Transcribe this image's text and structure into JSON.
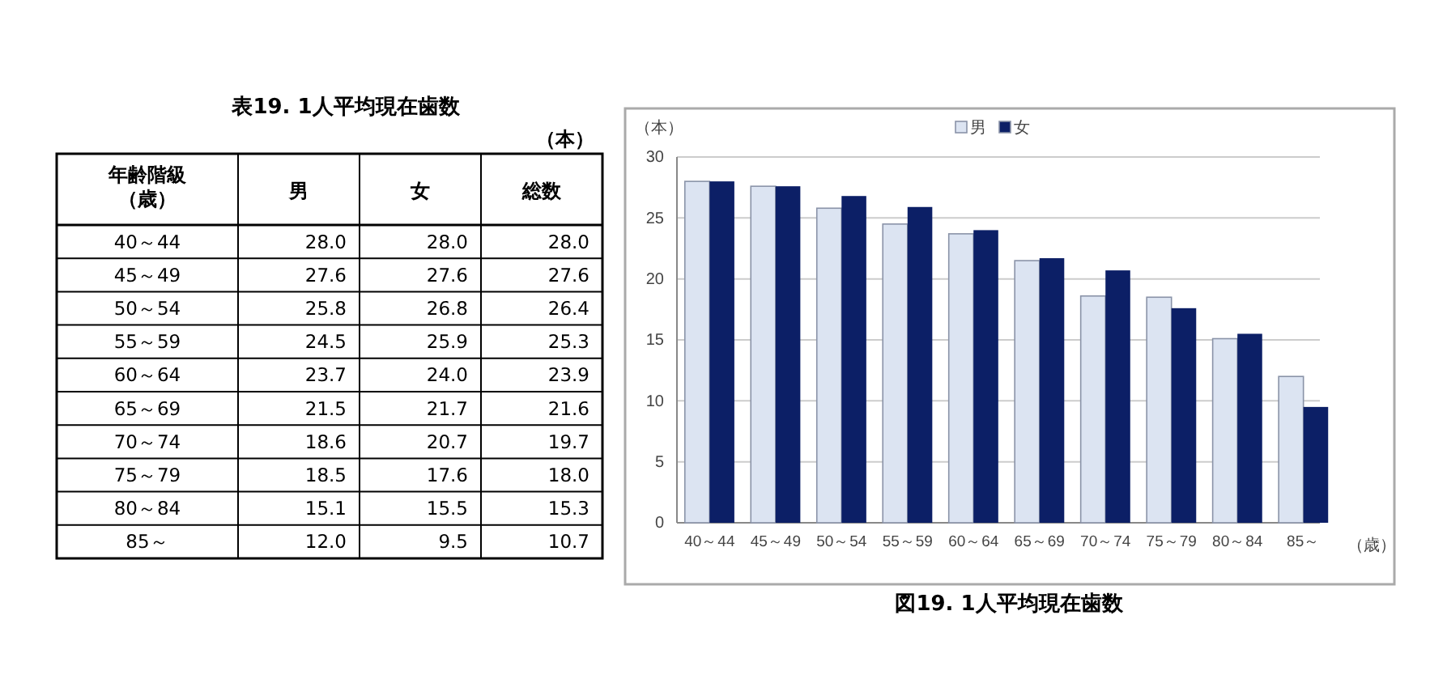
{
  "chart_data": [
    {
      "type": "heatmap",
      "title": "表19. 1人平均現在歯数",
      "annotations": [
        "（本）"
      ],
      "ylabel": "年齢階級（歳）",
      "categories": [
        "男",
        "女",
        "総数"
      ],
      "y_categories": [
        "40～44",
        "45～49",
        "50～54",
        "55～59",
        "60～64",
        "65～69",
        "70～74",
        "75～79",
        "80～84",
        "85～"
      ],
      "cells": [
        [
          28.0,
          28.0,
          28.0
        ],
        [
          27.6,
          27.6,
          27.6
        ],
        [
          25.8,
          26.8,
          26.4
        ],
        [
          24.5,
          25.9,
          25.3
        ],
        [
          23.7,
          24.0,
          23.9
        ],
        [
          21.5,
          21.7,
          21.6
        ],
        [
          18.6,
          20.7,
          19.7
        ],
        [
          18.5,
          17.6,
          18.0
        ],
        [
          15.1,
          15.5,
          15.3
        ],
        [
          12.0,
          9.5,
          10.7
        ]
      ],
      "cell_labels": [
        [
          "28.0",
          "28.0",
          "28.0"
        ],
        [
          "27.6",
          "27.6",
          "27.6"
        ],
        [
          "25.8",
          "26.8",
          "26.4"
        ],
        [
          "24.5",
          "25.9",
          "25.3"
        ],
        [
          "23.7",
          "24.0",
          "23.9"
        ],
        [
          "21.5",
          "21.7",
          "21.6"
        ],
        [
          "18.6",
          "20.7",
          "19.7"
        ],
        [
          "18.5",
          "17.6",
          "18.0"
        ],
        [
          "15.1",
          "15.5",
          "15.3"
        ],
        [
          "12.0",
          "9.5",
          "10.7"
        ]
      ]
    },
    {
      "type": "bar",
      "title": "図19. 1人平均現在歯数",
      "ylabel": "（本）",
      "xlabel": "（歳）",
      "categories": [
        "40～44",
        "45～49",
        "50～54",
        "55～59",
        "60～64",
        "65～69",
        "70～74",
        "75～79",
        "80～84",
        "85～"
      ],
      "series": [
        {
          "name": "男",
          "color": "#dce4f2",
          "values": [
            28.0,
            27.6,
            25.8,
            24.5,
            23.7,
            21.5,
            18.6,
            18.5,
            15.1,
            12.0
          ]
        },
        {
          "name": "女",
          "color": "#0c1f66",
          "values": [
            28.0,
            27.6,
            26.8,
            25.9,
            24.0,
            21.7,
            20.7,
            17.6,
            15.5,
            9.5
          ]
        }
      ],
      "ylim": [
        0,
        30
      ],
      "yticks": [
        0,
        5,
        10,
        15,
        20,
        25,
        30
      ],
      "grid": "y",
      "legend": "top"
    }
  ]
}
